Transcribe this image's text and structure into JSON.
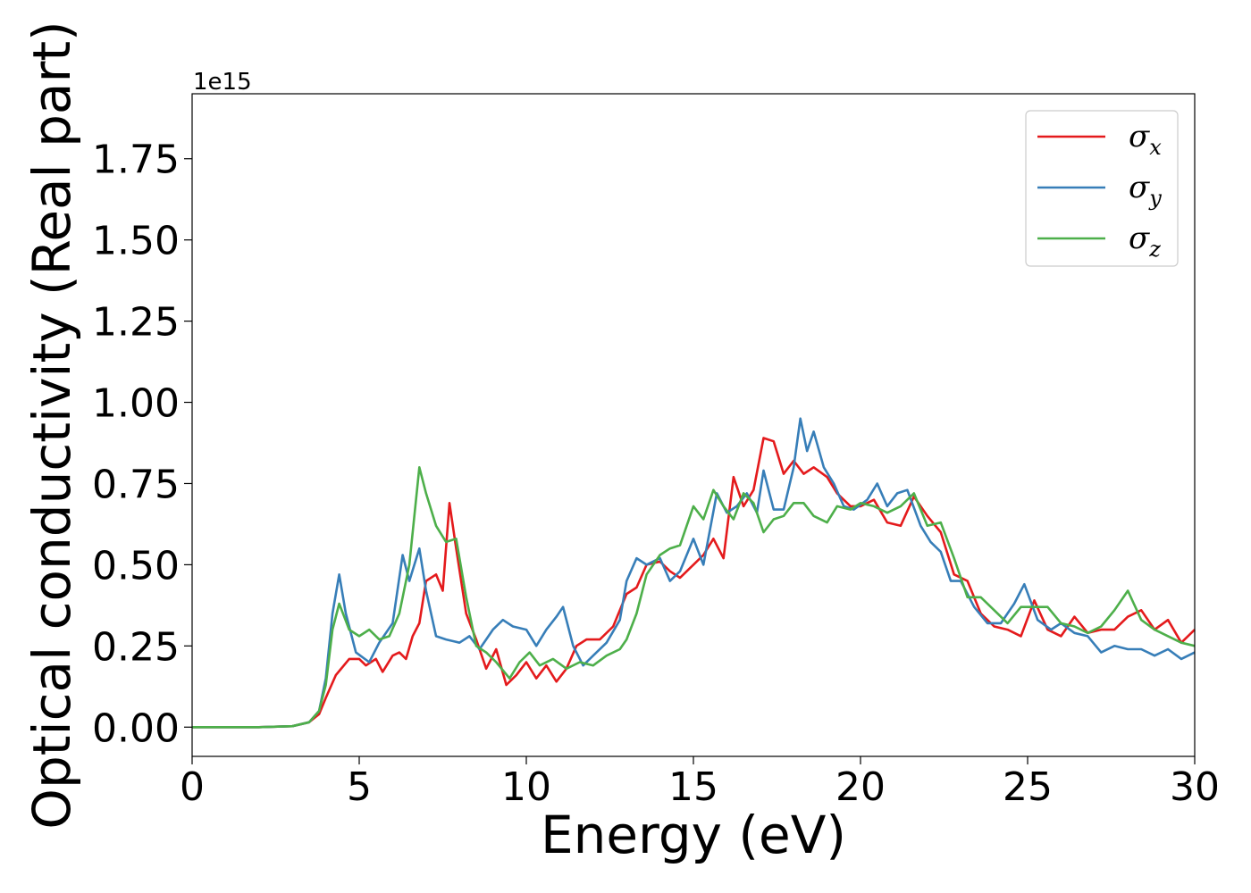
{
  "chart_data": {
    "type": "line",
    "xlabel": "Energy (eV)",
    "ylabel": "Optical conductivity (Real part)",
    "y_offset_text": "1e15",
    "xlim": [
      0,
      30
    ],
    "ylim": [
      -0.09,
      1.95
    ],
    "x_ticks": [
      0,
      5,
      10,
      15,
      20,
      25,
      30
    ],
    "x_tick_labels": [
      "0",
      "5",
      "10",
      "15",
      "20",
      "25",
      "30"
    ],
    "y_ticks": [
      0.0,
      0.25,
      0.5,
      0.75,
      1.0,
      1.25,
      1.5,
      1.75
    ],
    "y_tick_labels": [
      "0.00",
      "0.25",
      "0.50",
      "0.75",
      "1.00",
      "1.25",
      "1.50",
      "1.75"
    ],
    "grid": false,
    "legend_position": "top-right",
    "series": [
      {
        "name": "σ",
        "subscript": "x",
        "color": "#e41a1c",
        "points": [
          [
            0,
            0
          ],
          [
            2,
            0
          ],
          [
            3,
            0.003
          ],
          [
            3.5,
            0.015
          ],
          [
            3.8,
            0.04
          ],
          [
            4.0,
            0.09
          ],
          [
            4.3,
            0.16
          ],
          [
            4.7,
            0.21
          ],
          [
            5.0,
            0.21
          ],
          [
            5.2,
            0.19
          ],
          [
            5.5,
            0.21
          ],
          [
            5.7,
            0.17
          ],
          [
            6.0,
            0.22
          ],
          [
            6.2,
            0.23
          ],
          [
            6.4,
            0.21
          ],
          [
            6.6,
            0.28
          ],
          [
            6.8,
            0.32
          ],
          [
            7.0,
            0.45
          ],
          [
            7.3,
            0.47
          ],
          [
            7.5,
            0.42
          ],
          [
            7.7,
            0.69
          ],
          [
            7.9,
            0.55
          ],
          [
            8.2,
            0.35
          ],
          [
            8.5,
            0.27
          ],
          [
            8.8,
            0.18
          ],
          [
            9.1,
            0.24
          ],
          [
            9.4,
            0.13
          ],
          [
            9.7,
            0.16
          ],
          [
            10.0,
            0.2
          ],
          [
            10.3,
            0.15
          ],
          [
            10.6,
            0.19
          ],
          [
            10.9,
            0.14
          ],
          [
            11.2,
            0.18
          ],
          [
            11.5,
            0.25
          ],
          [
            11.8,
            0.27
          ],
          [
            12.2,
            0.27
          ],
          [
            12.6,
            0.31
          ],
          [
            13.0,
            0.41
          ],
          [
            13.3,
            0.43
          ],
          [
            13.6,
            0.5
          ],
          [
            14.0,
            0.51
          ],
          [
            14.3,
            0.48
          ],
          [
            14.6,
            0.46
          ],
          [
            15.0,
            0.5
          ],
          [
            15.3,
            0.53
          ],
          [
            15.6,
            0.58
          ],
          [
            15.9,
            0.52
          ],
          [
            16.2,
            0.77
          ],
          [
            16.5,
            0.68
          ],
          [
            16.8,
            0.73
          ],
          [
            17.1,
            0.89
          ],
          [
            17.4,
            0.88
          ],
          [
            17.7,
            0.78
          ],
          [
            18.0,
            0.82
          ],
          [
            18.3,
            0.78
          ],
          [
            18.6,
            0.8
          ],
          [
            19.0,
            0.77
          ],
          [
            19.3,
            0.72
          ],
          [
            19.7,
            0.68
          ],
          [
            20.0,
            0.68
          ],
          [
            20.4,
            0.7
          ],
          [
            20.8,
            0.63
          ],
          [
            21.2,
            0.62
          ],
          [
            21.6,
            0.71
          ],
          [
            22.0,
            0.65
          ],
          [
            22.4,
            0.6
          ],
          [
            22.8,
            0.47
          ],
          [
            23.2,
            0.45
          ],
          [
            23.6,
            0.35
          ],
          [
            24.0,
            0.31
          ],
          [
            24.4,
            0.3
          ],
          [
            24.8,
            0.28
          ],
          [
            25.2,
            0.39
          ],
          [
            25.6,
            0.3
          ],
          [
            26.0,
            0.28
          ],
          [
            26.4,
            0.34
          ],
          [
            26.8,
            0.29
          ],
          [
            27.2,
            0.3
          ],
          [
            27.6,
            0.3
          ],
          [
            28.0,
            0.34
          ],
          [
            28.4,
            0.36
          ],
          [
            28.8,
            0.3
          ],
          [
            29.2,
            0.33
          ],
          [
            29.6,
            0.26
          ],
          [
            30.0,
            0.3
          ]
        ]
      },
      {
        "name": "σ",
        "subscript": "y",
        "color": "#377eb8",
        "points": [
          [
            0,
            0
          ],
          [
            2,
            0
          ],
          [
            3,
            0.003
          ],
          [
            3.5,
            0.015
          ],
          [
            3.8,
            0.05
          ],
          [
            4.0,
            0.15
          ],
          [
            4.2,
            0.35
          ],
          [
            4.4,
            0.47
          ],
          [
            4.6,
            0.35
          ],
          [
            4.9,
            0.23
          ],
          [
            5.3,
            0.2
          ],
          [
            5.6,
            0.26
          ],
          [
            6.0,
            0.32
          ],
          [
            6.3,
            0.53
          ],
          [
            6.5,
            0.45
          ],
          [
            6.8,
            0.55
          ],
          [
            7.0,
            0.42
          ],
          [
            7.3,
            0.28
          ],
          [
            7.6,
            0.27
          ],
          [
            8.0,
            0.26
          ],
          [
            8.3,
            0.28
          ],
          [
            8.6,
            0.24
          ],
          [
            9.0,
            0.3
          ],
          [
            9.3,
            0.33
          ],
          [
            9.6,
            0.31
          ],
          [
            10.0,
            0.3
          ],
          [
            10.3,
            0.25
          ],
          [
            10.6,
            0.3
          ],
          [
            10.9,
            0.34
          ],
          [
            11.1,
            0.37
          ],
          [
            11.4,
            0.25
          ],
          [
            11.7,
            0.19
          ],
          [
            12.0,
            0.22
          ],
          [
            12.4,
            0.26
          ],
          [
            12.8,
            0.33
          ],
          [
            13.0,
            0.45
          ],
          [
            13.3,
            0.52
          ],
          [
            13.6,
            0.5
          ],
          [
            14.0,
            0.52
          ],
          [
            14.3,
            0.45
          ],
          [
            14.6,
            0.48
          ],
          [
            15.0,
            0.58
          ],
          [
            15.3,
            0.5
          ],
          [
            15.7,
            0.72
          ],
          [
            16.0,
            0.66
          ],
          [
            16.3,
            0.68
          ],
          [
            16.6,
            0.72
          ],
          [
            16.9,
            0.66
          ],
          [
            17.1,
            0.79
          ],
          [
            17.4,
            0.67
          ],
          [
            17.7,
            0.67
          ],
          [
            18.0,
            0.8
          ],
          [
            18.2,
            0.95
          ],
          [
            18.4,
            0.85
          ],
          [
            18.6,
            0.91
          ],
          [
            18.9,
            0.8
          ],
          [
            19.2,
            0.75
          ],
          [
            19.5,
            0.68
          ],
          [
            19.8,
            0.67
          ],
          [
            20.2,
            0.7
          ],
          [
            20.5,
            0.75
          ],
          [
            20.8,
            0.68
          ],
          [
            21.1,
            0.72
          ],
          [
            21.4,
            0.73
          ],
          [
            21.8,
            0.62
          ],
          [
            22.1,
            0.57
          ],
          [
            22.4,
            0.54
          ],
          [
            22.7,
            0.45
          ],
          [
            23.0,
            0.45
          ],
          [
            23.4,
            0.37
          ],
          [
            23.8,
            0.32
          ],
          [
            24.2,
            0.32
          ],
          [
            24.6,
            0.38
          ],
          [
            24.9,
            0.44
          ],
          [
            25.3,
            0.33
          ],
          [
            25.7,
            0.3
          ],
          [
            26.0,
            0.32
          ],
          [
            26.4,
            0.29
          ],
          [
            26.8,
            0.28
          ],
          [
            27.2,
            0.23
          ],
          [
            27.6,
            0.25
          ],
          [
            28.0,
            0.24
          ],
          [
            28.4,
            0.24
          ],
          [
            28.8,
            0.22
          ],
          [
            29.2,
            0.24
          ],
          [
            29.6,
            0.21
          ],
          [
            30.0,
            0.23
          ]
        ]
      },
      {
        "name": "σ",
        "subscript": "z",
        "color": "#4daf4a",
        "points": [
          [
            0,
            0
          ],
          [
            2,
            0
          ],
          [
            3,
            0.003
          ],
          [
            3.5,
            0.015
          ],
          [
            3.8,
            0.05
          ],
          [
            4.0,
            0.13
          ],
          [
            4.2,
            0.3
          ],
          [
            4.4,
            0.38
          ],
          [
            4.7,
            0.3
          ],
          [
            5.0,
            0.28
          ],
          [
            5.3,
            0.3
          ],
          [
            5.6,
            0.27
          ],
          [
            5.9,
            0.28
          ],
          [
            6.2,
            0.35
          ],
          [
            6.5,
            0.5
          ],
          [
            6.8,
            0.8
          ],
          [
            7.0,
            0.72
          ],
          [
            7.3,
            0.62
          ],
          [
            7.6,
            0.57
          ],
          [
            7.9,
            0.58
          ],
          [
            8.2,
            0.4
          ],
          [
            8.5,
            0.25
          ],
          [
            8.8,
            0.23
          ],
          [
            9.1,
            0.2
          ],
          [
            9.5,
            0.15
          ],
          [
            9.8,
            0.2
          ],
          [
            10.1,
            0.23
          ],
          [
            10.4,
            0.19
          ],
          [
            10.8,
            0.21
          ],
          [
            11.2,
            0.18
          ],
          [
            11.6,
            0.2
          ],
          [
            12.0,
            0.19
          ],
          [
            12.4,
            0.22
          ],
          [
            12.8,
            0.24
          ],
          [
            13.0,
            0.27
          ],
          [
            13.3,
            0.35
          ],
          [
            13.6,
            0.47
          ],
          [
            14.0,
            0.53
          ],
          [
            14.3,
            0.55
          ],
          [
            14.6,
            0.56
          ],
          [
            15.0,
            0.68
          ],
          [
            15.3,
            0.64
          ],
          [
            15.6,
            0.73
          ],
          [
            15.9,
            0.68
          ],
          [
            16.2,
            0.64
          ],
          [
            16.5,
            0.72
          ],
          [
            16.8,
            0.69
          ],
          [
            17.1,
            0.6
          ],
          [
            17.4,
            0.64
          ],
          [
            17.7,
            0.65
          ],
          [
            18.0,
            0.69
          ],
          [
            18.3,
            0.69
          ],
          [
            18.6,
            0.65
          ],
          [
            19.0,
            0.63
          ],
          [
            19.3,
            0.68
          ],
          [
            19.7,
            0.67
          ],
          [
            20.0,
            0.69
          ],
          [
            20.4,
            0.68
          ],
          [
            20.8,
            0.66
          ],
          [
            21.2,
            0.68
          ],
          [
            21.6,
            0.72
          ],
          [
            22.0,
            0.62
          ],
          [
            22.4,
            0.63
          ],
          [
            22.8,
            0.52
          ],
          [
            23.2,
            0.4
          ],
          [
            23.6,
            0.4
          ],
          [
            24.0,
            0.36
          ],
          [
            24.4,
            0.32
          ],
          [
            24.8,
            0.37
          ],
          [
            25.2,
            0.37
          ],
          [
            25.6,
            0.37
          ],
          [
            26.0,
            0.32
          ],
          [
            26.4,
            0.31
          ],
          [
            26.8,
            0.29
          ],
          [
            27.2,
            0.31
          ],
          [
            27.6,
            0.36
          ],
          [
            28.0,
            0.42
          ],
          [
            28.4,
            0.33
          ],
          [
            28.8,
            0.3
          ],
          [
            29.2,
            0.28
          ],
          [
            29.6,
            0.26
          ],
          [
            30.0,
            0.25
          ]
        ]
      }
    ]
  }
}
